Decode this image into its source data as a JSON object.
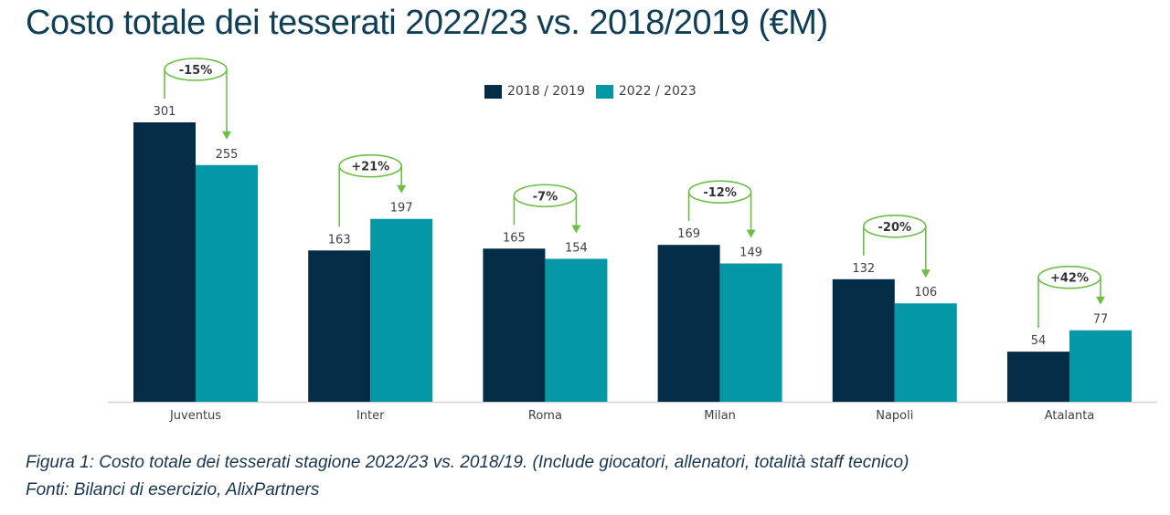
{
  "title": "Costo totale dei tesserati 2022/23 vs. 2018/2019 (€M)",
  "captions": {
    "figure": "Figura 1: Costo totale dei tesserati stagione 2022/23 vs. 2018/19. (Include giocatori, allenatori, totalità staff tecnico)",
    "sources": "Fonti: Bilanci di esercizio, AlixPartners"
  },
  "colors": {
    "series_2018": "#032d46",
    "series_2022": "#0497a5",
    "annotation": "#6cbe45",
    "title": "#0f3f57"
  },
  "chart_data": {
    "type": "bar",
    "title": "Costo totale dei tesserati 2022/23 vs. 2018/2019 (€M)",
    "xlabel": "",
    "ylabel": "",
    "ylim": [
      0,
      301
    ],
    "grid": false,
    "legend_position": "top-center",
    "categories": [
      "Juventus",
      "Inter",
      "Roma",
      "Milan",
      "Napoli",
      "Atalanta"
    ],
    "series": [
      {
        "name": "2018 / 2019",
        "values": [
          301,
          163,
          165,
          169,
          132,
          54
        ]
      },
      {
        "name": "2022 / 2023",
        "values": [
          255,
          197,
          154,
          149,
          106,
          77
        ]
      }
    ],
    "annotations": [
      "-15%",
      "+21%",
      "-7%",
      "-12%",
      "-20%",
      "+42%"
    ]
  }
}
